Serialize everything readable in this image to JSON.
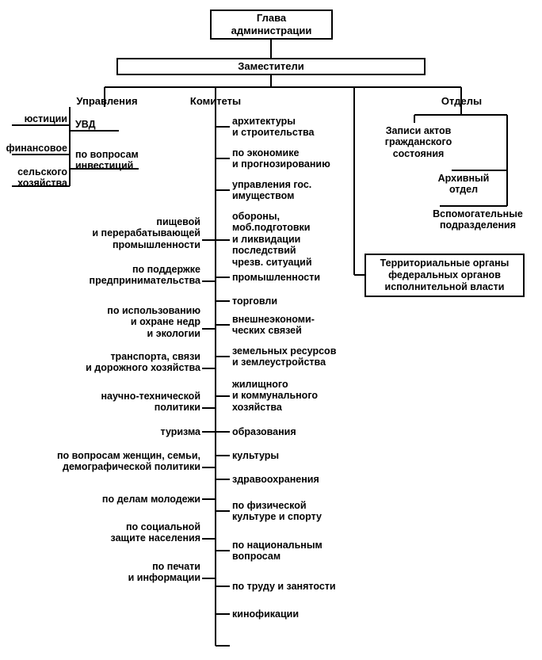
{
  "type": "tree",
  "background_color": "#ffffff",
  "line_color": "#000000",
  "line_width": 2,
  "font_family": "Arial",
  "font_size_pt": 10,
  "font_weight": "bold",
  "root": {
    "label": "Глава\nадминистрации"
  },
  "level2": {
    "label": "Заместители"
  },
  "columns": {
    "upravleniya": {
      "header": "Управления"
    },
    "komitety": {
      "header": "Комитеты"
    },
    "otdely": {
      "header": "Отделы"
    }
  },
  "upravleniya_left": [
    "юстиции",
    "финансовое",
    "сельского\nхозяйства"
  ],
  "upravleniya_right": [
    "УВД",
    "по вопросам\nинвестиций"
  ],
  "komitety_left": [
    "пищевой\nи перерабатывающей\nпромышленности",
    "по поддержке\nпредпринимательства",
    "по использованию\nи охране недр\nи экологии",
    "транспорта, связи\nи дорожного хозяйства",
    "научно-технической\nполитики",
    "туризма",
    "по вопросам женщин, семьи,\nдемографической политики",
    "по делам молодежи",
    "по социальной\nзащите населения",
    "по печати\nи информации"
  ],
  "komitety_right": [
    "архитектуры\nи строительства",
    "по экономике\nи прогнозированию",
    "управления гос.\nимуществом",
    "обороны,\nмоб.подготовки\nи ликвидации\nпоследствий\nчрезв. ситуаций",
    "промышленности",
    "торговли",
    "внешнеэкономи-\nческих связей",
    "земельных ресурсов\nи землеустройства",
    "жилищного\nи коммунального\nхозяйства",
    "образования",
    "культуры",
    "здравоохранения",
    "по физической\nкультуре и спорту",
    "по национальным\nвопросам",
    "по труду и занятости",
    "кинофикации"
  ],
  "otdely_items": [
    "Записи актов\nгражданского\nсостояния",
    "Архивный\nотдел",
    "Вспомогательные\nподразделения"
  ],
  "territorial_box": "Территориальные органы\nфедеральных органов\nисполнительной власти"
}
